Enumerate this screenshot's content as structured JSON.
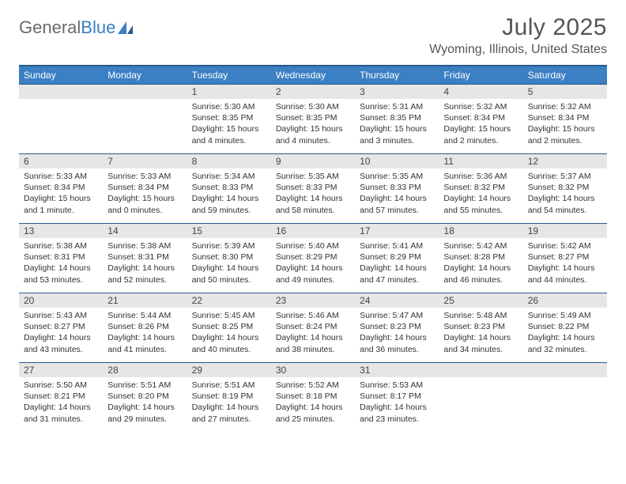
{
  "brand": {
    "name_part1": "General",
    "name_part2": "Blue"
  },
  "title": "July 2025",
  "location": "Wyoming, Illinois, United States",
  "colors": {
    "header_bg": "#3b7fc4",
    "header_border": "#2a5a8a",
    "daynum_bg": "#e6e6e6",
    "text": "#333333",
    "title_text": "#555555"
  },
  "dayHeaders": [
    "Sunday",
    "Monday",
    "Tuesday",
    "Wednesday",
    "Thursday",
    "Friday",
    "Saturday"
  ],
  "weeks": [
    [
      null,
      null,
      {
        "n": "1",
        "sr": "5:30 AM",
        "ss": "8:35 PM",
        "dl": "15 hours and 4 minutes."
      },
      {
        "n": "2",
        "sr": "5:30 AM",
        "ss": "8:35 PM",
        "dl": "15 hours and 4 minutes."
      },
      {
        "n": "3",
        "sr": "5:31 AM",
        "ss": "8:35 PM",
        "dl": "15 hours and 3 minutes."
      },
      {
        "n": "4",
        "sr": "5:32 AM",
        "ss": "8:34 PM",
        "dl": "15 hours and 2 minutes."
      },
      {
        "n": "5",
        "sr": "5:32 AM",
        "ss": "8:34 PM",
        "dl": "15 hours and 2 minutes."
      }
    ],
    [
      {
        "n": "6",
        "sr": "5:33 AM",
        "ss": "8:34 PM",
        "dl": "15 hours and 1 minute."
      },
      {
        "n": "7",
        "sr": "5:33 AM",
        "ss": "8:34 PM",
        "dl": "15 hours and 0 minutes."
      },
      {
        "n": "8",
        "sr": "5:34 AM",
        "ss": "8:33 PM",
        "dl": "14 hours and 59 minutes."
      },
      {
        "n": "9",
        "sr": "5:35 AM",
        "ss": "8:33 PM",
        "dl": "14 hours and 58 minutes."
      },
      {
        "n": "10",
        "sr": "5:35 AM",
        "ss": "8:33 PM",
        "dl": "14 hours and 57 minutes."
      },
      {
        "n": "11",
        "sr": "5:36 AM",
        "ss": "8:32 PM",
        "dl": "14 hours and 55 minutes."
      },
      {
        "n": "12",
        "sr": "5:37 AM",
        "ss": "8:32 PM",
        "dl": "14 hours and 54 minutes."
      }
    ],
    [
      {
        "n": "13",
        "sr": "5:38 AM",
        "ss": "8:31 PM",
        "dl": "14 hours and 53 minutes."
      },
      {
        "n": "14",
        "sr": "5:38 AM",
        "ss": "8:31 PM",
        "dl": "14 hours and 52 minutes."
      },
      {
        "n": "15",
        "sr": "5:39 AM",
        "ss": "8:30 PM",
        "dl": "14 hours and 50 minutes."
      },
      {
        "n": "16",
        "sr": "5:40 AM",
        "ss": "8:29 PM",
        "dl": "14 hours and 49 minutes."
      },
      {
        "n": "17",
        "sr": "5:41 AM",
        "ss": "8:29 PM",
        "dl": "14 hours and 47 minutes."
      },
      {
        "n": "18",
        "sr": "5:42 AM",
        "ss": "8:28 PM",
        "dl": "14 hours and 46 minutes."
      },
      {
        "n": "19",
        "sr": "5:42 AM",
        "ss": "8:27 PM",
        "dl": "14 hours and 44 minutes."
      }
    ],
    [
      {
        "n": "20",
        "sr": "5:43 AM",
        "ss": "8:27 PM",
        "dl": "14 hours and 43 minutes."
      },
      {
        "n": "21",
        "sr": "5:44 AM",
        "ss": "8:26 PM",
        "dl": "14 hours and 41 minutes."
      },
      {
        "n": "22",
        "sr": "5:45 AM",
        "ss": "8:25 PM",
        "dl": "14 hours and 40 minutes."
      },
      {
        "n": "23",
        "sr": "5:46 AM",
        "ss": "8:24 PM",
        "dl": "14 hours and 38 minutes."
      },
      {
        "n": "24",
        "sr": "5:47 AM",
        "ss": "8:23 PM",
        "dl": "14 hours and 36 minutes."
      },
      {
        "n": "25",
        "sr": "5:48 AM",
        "ss": "8:23 PM",
        "dl": "14 hours and 34 minutes."
      },
      {
        "n": "26",
        "sr": "5:49 AM",
        "ss": "8:22 PM",
        "dl": "14 hours and 32 minutes."
      }
    ],
    [
      {
        "n": "27",
        "sr": "5:50 AM",
        "ss": "8:21 PM",
        "dl": "14 hours and 31 minutes."
      },
      {
        "n": "28",
        "sr": "5:51 AM",
        "ss": "8:20 PM",
        "dl": "14 hours and 29 minutes."
      },
      {
        "n": "29",
        "sr": "5:51 AM",
        "ss": "8:19 PM",
        "dl": "14 hours and 27 minutes."
      },
      {
        "n": "30",
        "sr": "5:52 AM",
        "ss": "8:18 PM",
        "dl": "14 hours and 25 minutes."
      },
      {
        "n": "31",
        "sr": "5:53 AM",
        "ss": "8:17 PM",
        "dl": "14 hours and 23 minutes."
      },
      null,
      null
    ]
  ]
}
